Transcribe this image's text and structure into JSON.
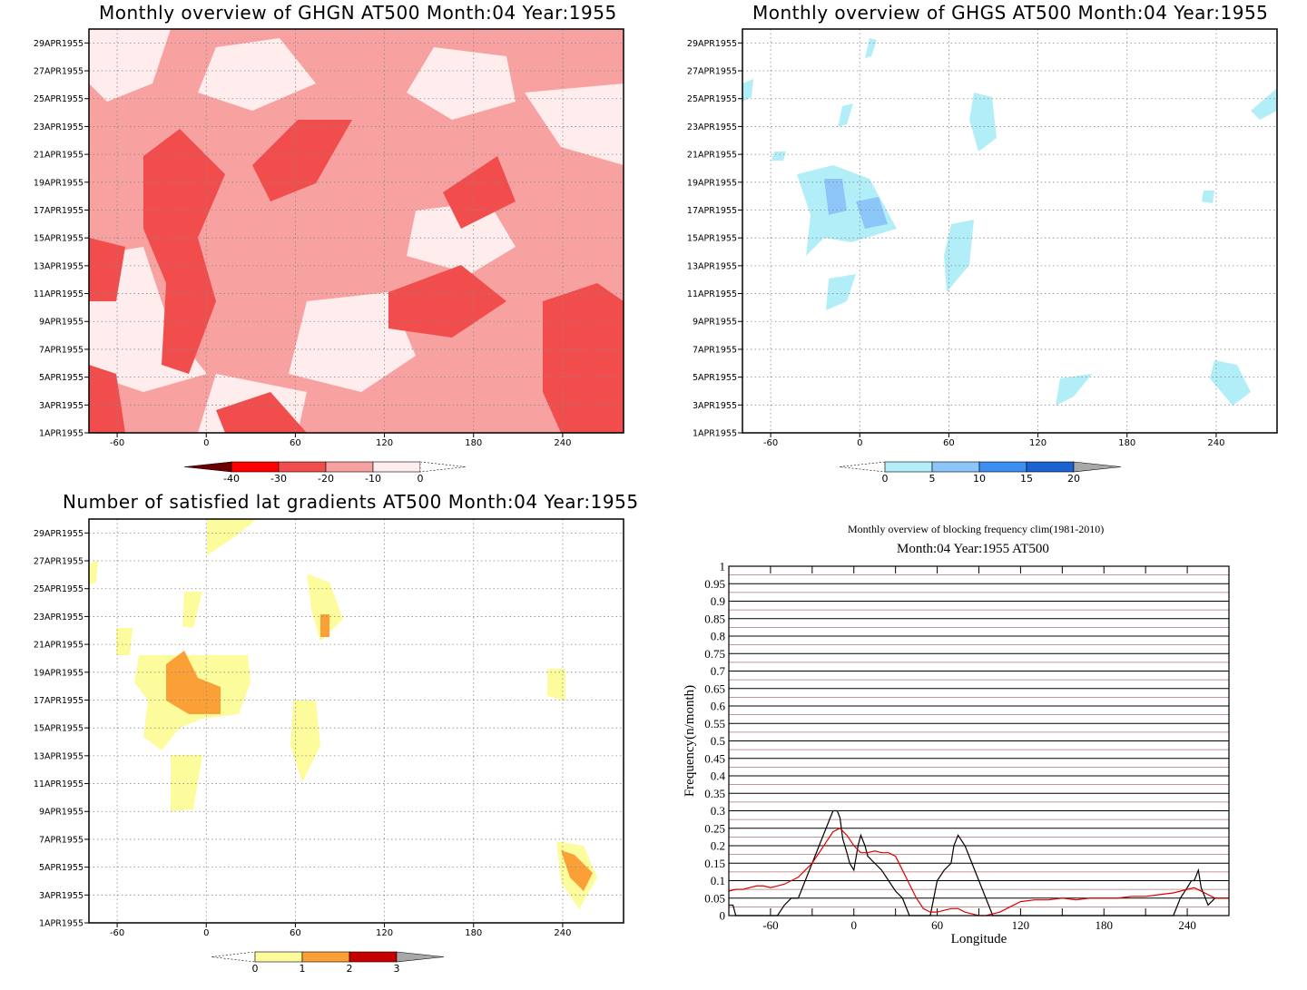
{
  "panels": [
    {
      "title": "Monthly overview of GHGN AT500 Month:04 Year:1955",
      "colorbar": {
        "labels": [
          "-40",
          "-30",
          "-20",
          "-10",
          "0"
        ],
        "colors": [
          "#6b0000",
          "#ff0000",
          "#f24d4d",
          "#f8a1a1",
          "#ffecec"
        ]
      }
    },
    {
      "title": "Monthly overview of GHGS AT500 Month:04 Year:1955",
      "colorbar": {
        "labels": [
          "0",
          "5",
          "10",
          "15",
          "20"
        ],
        "colors": [
          "#b2eef8",
          "#8cc6f8",
          "#3c8ef0",
          "#1b62d2",
          "#a8a8a8"
        ]
      }
    },
    {
      "title": "Number of satisfied lat gradients AT500 Month:04 Year:1955",
      "colorbar": {
        "labels": [
          "0",
          "1",
          "2",
          "3"
        ],
        "colors": [
          "#fdfc9d",
          "#fb9f37",
          "#c60000",
          "#a8a8a8"
        ]
      }
    }
  ],
  "time_axis_labels": [
    "1APR1955",
    "3APR1955",
    "5APR1955",
    "7APR1955",
    "9APR1955",
    "11APR1955",
    "13APR1955",
    "15APR1955",
    "17APR1955",
    "19APR1955",
    "21APR1955",
    "23APR1955",
    "25APR1955",
    "27APR1955",
    "29APR1955"
  ],
  "longitude_ticks": [
    "-60",
    "0",
    "60",
    "120",
    "180",
    "240"
  ],
  "chart_data": {
    "type": "line",
    "title": "Monthly overview of blocking frequency clim(1981-2010)",
    "subtitle": "Month:04 Year:1955  AT500",
    "xlabel": "Longitude",
    "ylabel": "Frequency(n/month)",
    "xlim": [
      -90,
      270
    ],
    "ylim": [
      0,
      1
    ],
    "x_ticks": [
      -60,
      0,
      60,
      120,
      180,
      240
    ],
    "y_ticks": [
      "0",
      "0.05",
      "0.1",
      "0.15",
      "0.2",
      "0.25",
      "0.3",
      "0.35",
      "0.4",
      "0.45",
      "0.5",
      "0.55",
      "0.6",
      "0.65",
      "0.7",
      "0.75",
      "0.8",
      "0.85",
      "0.9",
      "0.95",
      "1"
    ],
    "grid": true,
    "series": [
      {
        "color": "#000000",
        "x": [
          -90,
          -87,
          -85,
          -80,
          -75,
          -70,
          -65,
          -60,
          -55,
          -50,
          -45,
          -40,
          -35,
          -30,
          -25,
          -20,
          -15,
          -12,
          -10,
          -8,
          -5,
          -3,
          0,
          3,
          5,
          8,
          10,
          15,
          20,
          25,
          30,
          35,
          40,
          45,
          50,
          55,
          60,
          65,
          70,
          72,
          75,
          80,
          85,
          90,
          95,
          100,
          105,
          110,
          115,
          120,
          130,
          140,
          150,
          160,
          170,
          180,
          190,
          200,
          210,
          220,
          230,
          235,
          240,
          243,
          245,
          248,
          250,
          253,
          255,
          260,
          265,
          270
        ],
        "y": [
          0.03,
          0.03,
          0.0,
          0.0,
          0.0,
          0.0,
          0.0,
          0.0,
          0.0,
          0.03,
          0.05,
          0.05,
          0.1,
          0.15,
          0.2,
          0.25,
          0.3,
          0.3,
          0.28,
          0.22,
          0.18,
          0.15,
          0.13,
          0.2,
          0.23,
          0.2,
          0.17,
          0.15,
          0.13,
          0.1,
          0.07,
          0.05,
          0.0,
          0.0,
          0.0,
          0.0,
          0.1,
          0.13,
          0.15,
          0.2,
          0.23,
          0.2,
          0.15,
          0.1,
          0.05,
          0.0,
          0.0,
          0.0,
          0.0,
          0.0,
          0.0,
          0.0,
          0.0,
          0.0,
          0.0,
          0.0,
          0.0,
          0.0,
          0.0,
          0.0,
          0.0,
          0.05,
          0.08,
          0.1,
          0.1,
          0.13,
          0.08,
          0.05,
          0.03,
          0.05,
          0.05,
          0.05
        ]
      },
      {
        "color": "#dd0000",
        "x": [
          -90,
          -85,
          -80,
          -75,
          -70,
          -65,
          -60,
          -55,
          -50,
          -45,
          -40,
          -35,
          -30,
          -25,
          -20,
          -15,
          -10,
          -5,
          0,
          5,
          10,
          15,
          20,
          25,
          30,
          35,
          40,
          45,
          50,
          55,
          60,
          65,
          70,
          75,
          80,
          85,
          90,
          95,
          100,
          105,
          110,
          115,
          120,
          130,
          140,
          150,
          160,
          170,
          180,
          190,
          200,
          210,
          220,
          230,
          240,
          245,
          250,
          255,
          260,
          265,
          270
        ],
        "y": [
          0.07,
          0.075,
          0.075,
          0.08,
          0.085,
          0.085,
          0.08,
          0.085,
          0.09,
          0.1,
          0.11,
          0.13,
          0.15,
          0.18,
          0.21,
          0.24,
          0.25,
          0.23,
          0.2,
          0.18,
          0.18,
          0.185,
          0.18,
          0.18,
          0.17,
          0.13,
          0.09,
          0.05,
          0.02,
          0.01,
          0.01,
          0.015,
          0.02,
          0.02,
          0.01,
          0.005,
          0.0,
          0.0,
          0.005,
          0.01,
          0.02,
          0.03,
          0.04,
          0.045,
          0.045,
          0.05,
          0.045,
          0.05,
          0.05,
          0.05,
          0.055,
          0.055,
          0.06,
          0.065,
          0.075,
          0.08,
          0.07,
          0.06,
          0.05,
          0.05,
          0.05
        ]
      }
    ]
  }
}
